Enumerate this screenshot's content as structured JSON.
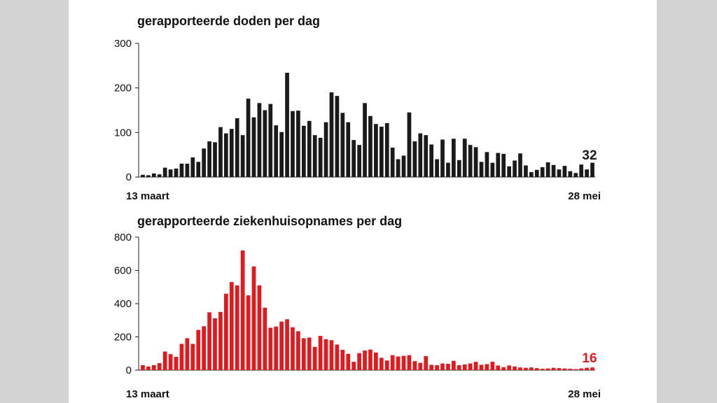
{
  "chart_data": [
    {
      "type": "bar",
      "title": "gerapporteerde doden per dag",
      "x_start_label": "13 maart",
      "x_end_label": "28 mei",
      "ylim": [
        0,
        300
      ],
      "yticks": [
        "0",
        "100",
        "200",
        "300"
      ],
      "color": "#1a1a1a",
      "end_value_label": "32",
      "end_label_color": "#1a1a1a",
      "values": [
        5,
        4,
        8,
        6,
        21,
        17,
        19,
        30,
        30,
        44,
        34,
        64,
        80,
        78,
        112,
        98,
        108,
        132,
        94,
        176,
        134,
        166,
        150,
        164,
        116,
        101,
        234,
        148,
        149,
        115,
        126,
        94,
        88,
        123,
        190,
        182,
        144,
        123,
        83,
        72,
        166,
        137,
        119,
        113,
        121,
        66,
        40,
        48,
        145,
        80,
        98,
        94,
        73,
        40,
        84,
        32,
        86,
        38,
        86,
        72,
        67,
        34,
        56,
        32,
        54,
        52,
        24,
        37,
        53,
        26,
        11,
        16,
        22,
        33,
        27,
        17,
        25,
        13,
        9,
        28,
        17,
        32
      ]
    },
    {
      "type": "bar",
      "title": "gerapporteerde ziekenhuisopnames per dag",
      "x_start_label": "13 maart",
      "x_end_label": "28 mei",
      "ylim": [
        0,
        800
      ],
      "yticks": [
        "0",
        "200",
        "400",
        "600",
        "800"
      ],
      "color": "#e11a1f",
      "end_value_label": "16",
      "end_label_color": "#e11a1f",
      "values": [
        30,
        22,
        30,
        42,
        112,
        96,
        80,
        158,
        192,
        158,
        242,
        264,
        348,
        312,
        350,
        460,
        530,
        510,
        720,
        450,
        624,
        510,
        376,
        255,
        262,
        292,
        306,
        258,
        234,
        192,
        196,
        140,
        206,
        186,
        180,
        154,
        122,
        98,
        50,
        102,
        118,
        124,
        106,
        74,
        58,
        90,
        82,
        86,
        90,
        54,
        44,
        84,
        32,
        30,
        40,
        38,
        56,
        30,
        34,
        40,
        50,
        32,
        36,
        50,
        28,
        18,
        28,
        22,
        16,
        14,
        16,
        12,
        8,
        10,
        14,
        12,
        10,
        8,
        6,
        10,
        14,
        16
      ]
    }
  ]
}
